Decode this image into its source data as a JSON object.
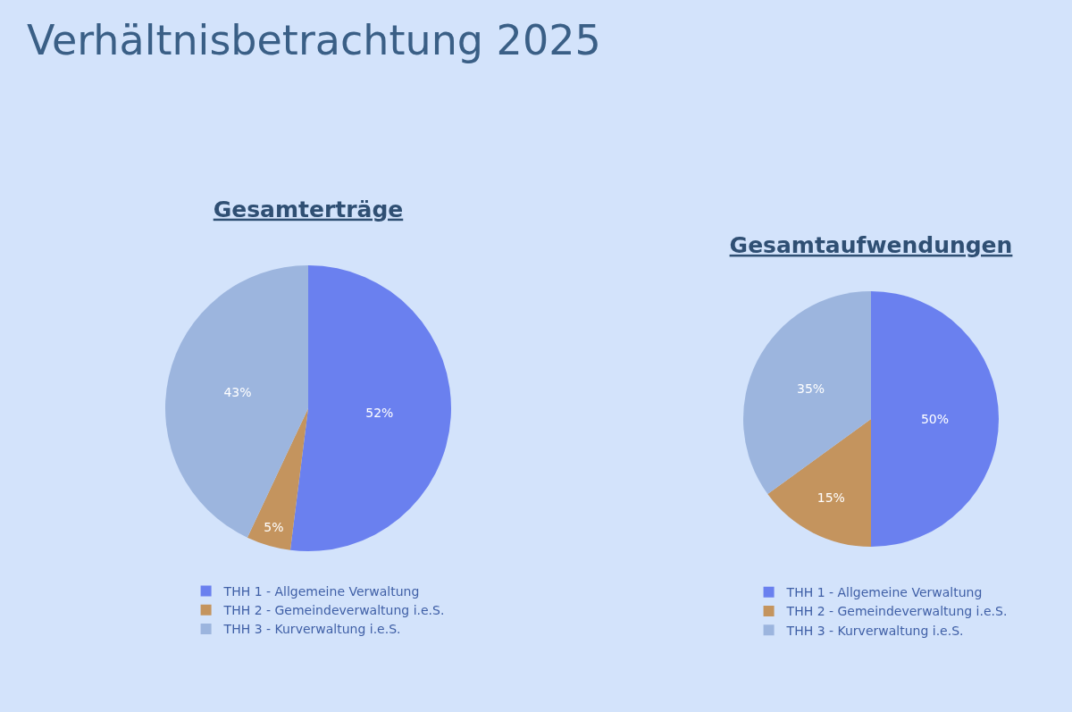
{
  "chart_data": [
    {
      "type": "other",
      "title": "Verhältnisbetrachtung 2025"
    },
    {
      "type": "pie",
      "title": "Gesamterträge",
      "categories": [
        "THH 1 - Allgemeine Verwaltung",
        "THH 2 - Gemeindeverwaltung i.e.S.",
        "THH 3 - Kurverwaltung i.e.S."
      ],
      "values": [
        52,
        5,
        43
      ],
      "value_labels": [
        "52%",
        "5%",
        "43%"
      ],
      "colors": [
        "#6a80ef",
        "#c4945e",
        "#9cb5de"
      ],
      "legend": "bottom"
    },
    {
      "type": "pie",
      "title": "Gesamtaufwendungen",
      "categories": [
        "THH 1 - Allgemeine Verwaltung",
        "THH 2 - Gemeindeverwaltung i.e.S.",
        "THH 3 - Kurverwaltung i.e.S."
      ],
      "values": [
        50,
        15,
        35
      ],
      "value_labels": [
        "50%",
        "15%",
        "35%"
      ],
      "colors": [
        "#6a80ef",
        "#c4945e",
        "#9cb5de"
      ],
      "legend": "bottom"
    }
  ]
}
